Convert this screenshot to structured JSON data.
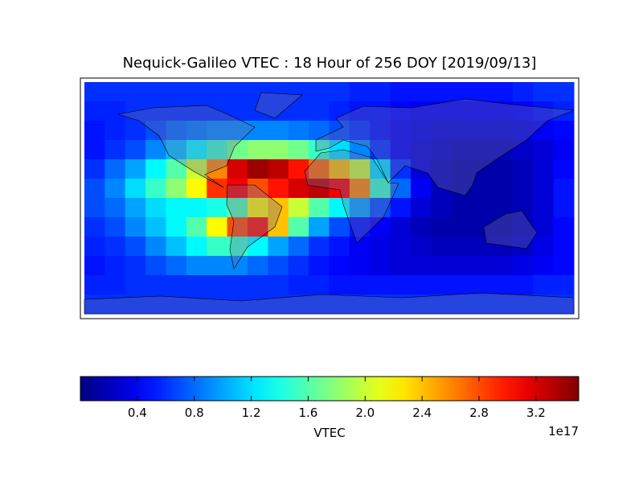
{
  "chart_data": {
    "type": "heatmap",
    "title": "Nequick-Galileo VTEC : 18 Hour of 256 DOY [2019/09/13]",
    "z": [
      [
        0.6,
        0.6,
        0.6,
        0.6,
        0.6,
        0.6,
        0.6,
        0.6,
        0.6,
        0.6,
        0.6,
        0.6,
        0.6,
        0.55,
        0.55,
        0.5,
        0.5,
        0.5,
        0.5,
        0.5,
        0.5,
        0.55,
        0.6,
        0.6
      ],
      [
        0.55,
        0.55,
        0.6,
        0.6,
        0.6,
        0.6,
        0.6,
        0.6,
        0.6,
        0.6,
        0.6,
        0.6,
        0.55,
        0.5,
        0.5,
        0.45,
        0.4,
        0.4,
        0.4,
        0.4,
        0.4,
        0.45,
        0.5,
        0.55
      ],
      [
        0.5,
        0.55,
        0.6,
        0.7,
        0.8,
        0.85,
        0.9,
        0.9,
        0.9,
        0.9,
        0.85,
        0.8,
        0.7,
        0.6,
        0.5,
        0.4,
        0.35,
        0.3,
        0.3,
        0.3,
        0.3,
        0.35,
        0.4,
        0.45
      ],
      [
        0.5,
        0.6,
        0.7,
        0.9,
        1.1,
        1.3,
        1.5,
        1.7,
        1.8,
        1.8,
        1.7,
        1.5,
        1.2,
        0.9,
        0.6,
        0.4,
        0.3,
        0.25,
        0.2,
        0.2,
        0.2,
        0.25,
        0.3,
        0.4
      ],
      [
        0.6,
        0.8,
        1.0,
        1.3,
        1.6,
        2.0,
        2.6,
        3.2,
        3.4,
        3.3,
        3.0,
        2.7,
        2.4,
        2.0,
        1.2,
        0.6,
        0.3,
        0.2,
        0.15,
        0.15,
        0.15,
        0.2,
        0.3,
        0.45
      ],
      [
        0.7,
        0.9,
        1.2,
        1.5,
        1.8,
        2.2,
        2.9,
        3.1,
        2.8,
        3.0,
        3.2,
        3.3,
        3.1,
        2.6,
        1.5,
        0.8,
        0.4,
        0.2,
        0.15,
        0.15,
        0.15,
        0.2,
        0.3,
        0.5
      ],
      [
        0.7,
        0.8,
        1.0,
        1.2,
        1.3,
        1.3,
        1.4,
        1.6,
        2.2,
        2.4,
        2.0,
        1.6,
        1.3,
        1.0,
        0.7,
        0.5,
        0.3,
        0.2,
        0.15,
        0.15,
        0.15,
        0.2,
        0.3,
        0.5
      ],
      [
        0.6,
        0.7,
        0.9,
        1.1,
        1.3,
        1.6,
        2.2,
        2.8,
        3.0,
        2.4,
        1.6,
        1.0,
        0.7,
        0.5,
        0.4,
        0.3,
        0.2,
        0.15,
        0.15,
        0.15,
        0.15,
        0.2,
        0.3,
        0.45
      ],
      [
        0.55,
        0.6,
        0.7,
        0.9,
        1.1,
        1.3,
        1.5,
        1.5,
        1.3,
        1.0,
        0.8,
        0.6,
        0.5,
        0.4,
        0.35,
        0.3,
        0.25,
        0.2,
        0.2,
        0.2,
        0.2,
        0.25,
        0.35,
        0.45
      ],
      [
        0.5,
        0.55,
        0.6,
        0.7,
        0.8,
        0.9,
        0.9,
        0.9,
        0.8,
        0.7,
        0.6,
        0.5,
        0.45,
        0.4,
        0.35,
        0.3,
        0.3,
        0.3,
        0.3,
        0.3,
        0.3,
        0.35,
        0.4,
        0.45
      ],
      [
        0.55,
        0.55,
        0.6,
        0.6,
        0.6,
        0.6,
        0.6,
        0.6,
        0.6,
        0.6,
        0.55,
        0.55,
        0.5,
        0.5,
        0.5,
        0.5,
        0.5,
        0.5,
        0.5,
        0.5,
        0.5,
        0.5,
        0.55,
        0.55
      ],
      [
        0.6,
        0.6,
        0.6,
        0.6,
        0.6,
        0.6,
        0.6,
        0.6,
        0.6,
        0.6,
        0.6,
        0.6,
        0.6,
        0.6,
        0.6,
        0.6,
        0.6,
        0.6,
        0.6,
        0.6,
        0.6,
        0.6,
        0.6,
        0.6
      ]
    ],
    "clim": [
      0,
      3.5
    ],
    "cticks": [
      0.4,
      0.8,
      1.2,
      1.6,
      {
        "value": 2,
        "label": "2.0"
      },
      2.4,
      2.8,
      3.2
    ],
    "colorbar_label": "VTEC",
    "offset_text": "1e17"
  }
}
